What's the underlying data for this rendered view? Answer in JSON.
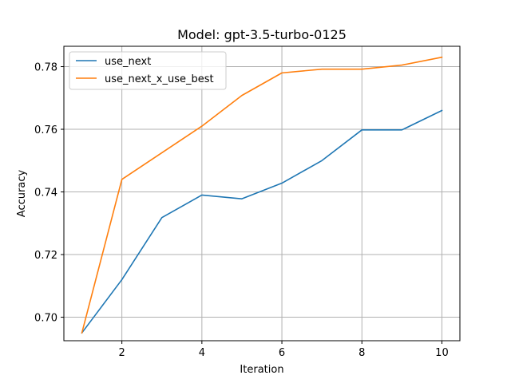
{
  "chart_data": {
    "type": "line",
    "title": "Model: gpt-3.5-turbo-0125",
    "xlabel": "Iteration",
    "ylabel": "Accuracy",
    "x": [
      1,
      2,
      3,
      4,
      5,
      6,
      7,
      8,
      9,
      10
    ],
    "xlim": [
      0.55,
      10.45
    ],
    "ylim": [
      0.6925,
      0.7865
    ],
    "xticks": [
      2,
      4,
      6,
      8,
      10
    ],
    "yticks": [
      0.7,
      0.72,
      0.74,
      0.76,
      0.78
    ],
    "ytick_labels": [
      "0.70",
      "0.72",
      "0.74",
      "0.76",
      "0.78"
    ],
    "grid": true,
    "legend_position": "top-left",
    "series": [
      {
        "name": "use_next",
        "color": "#1f77b4",
        "values": [
          0.695,
          0.712,
          0.7318,
          0.739,
          0.7378,
          0.7428,
          0.75,
          0.7598,
          0.7598,
          0.766
        ]
      },
      {
        "name": "use_next_x_use_best",
        "color": "#ff7f0e",
        "values": [
          0.695,
          0.744,
          0.7525,
          0.761,
          0.7708,
          0.778,
          0.7792,
          0.7792,
          0.7805,
          0.783
        ]
      }
    ]
  }
}
